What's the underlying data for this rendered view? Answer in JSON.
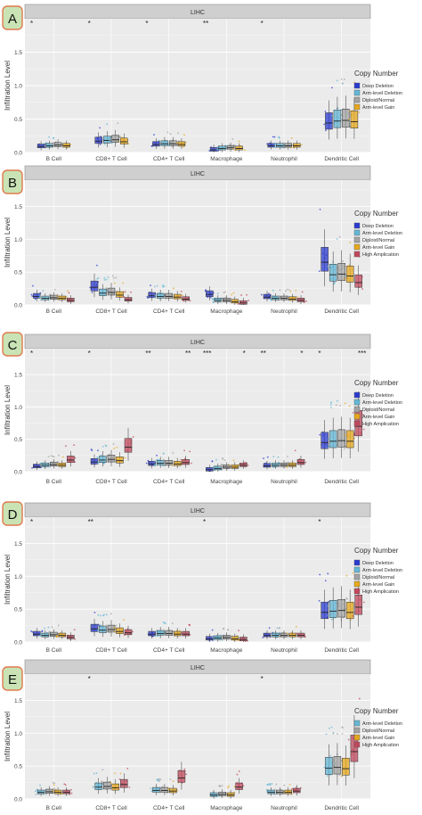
{
  "colors": {
    "Deep Deletion": "#2b3bd0",
    "Arm-level Deletion": "#63b7d6",
    "Diploid/Normal": "#a3a3a3",
    "Arm-level Gain": "#e7a81b",
    "High Amplication": "#c0485c",
    "panel_bg": "#ebebeb",
    "strip_bg": "#cfcfcf",
    "badge_fill": "#c9e3b5",
    "badge_stroke": "#e07a4f"
  },
  "chart_data": [
    {
      "type": "box",
      "panel_label": "A",
      "title": "LIHC",
      "ylabel": "Infiltration Level",
      "ylim": [
        0,
        2.0
      ],
      "yticks": [
        "0.0",
        "0.5",
        "1.0",
        "1.5"
      ],
      "categories": [
        "B Cell",
        "CD8+ T Cell",
        "CD4+ T Cell",
        "Macrophage",
        "Neutrophil",
        "Dendritic Cell"
      ],
      "legend_title": "Copy Number",
      "series": [
        {
          "name": "Deep Deletion",
          "medians": [
            0.09,
            0.17,
            0.12,
            0.04,
            0.1,
            0.44
          ]
        },
        {
          "name": "Arm-level Deletion",
          "medians": [
            0.1,
            0.18,
            0.13,
            0.06,
            0.1,
            0.47
          ]
        },
        {
          "name": "Diploid/Normal",
          "medians": [
            0.11,
            0.19,
            0.13,
            0.07,
            0.1,
            0.48
          ]
        },
        {
          "name": "Arm-level Gain",
          "medians": [
            0.1,
            0.16,
            0.12,
            0.06,
            0.1,
            0.46
          ]
        }
      ],
      "significance": [
        {
          "category": "B Cell",
          "label": "*"
        },
        {
          "category": "CD8+ T Cell",
          "label": "*"
        },
        {
          "category": "CD4+ T Cell",
          "label": "*"
        },
        {
          "category": "Macrophage",
          "label": "**"
        },
        {
          "category": "Neutrophil",
          "label": "*"
        }
      ]
    },
    {
      "type": "box",
      "panel_label": "B",
      "title": "LIHC",
      "ylabel": "Infiltration Level",
      "ylim": [
        0,
        1.9
      ],
      "yticks": [
        "0.0",
        "0.5",
        "1.0",
        "1.5"
      ],
      "categories": [
        "B Cell",
        "CD8+ T Cell",
        "CD4+ T Cell",
        "Macrophage",
        "Neutrophil",
        "Dendritic Cell"
      ],
      "legend_title": "Copy Number",
      "series": [
        {
          "name": "Deep Deletion",
          "medians": [
            0.13,
            0.27,
            0.14,
            0.16,
            0.12,
            0.65
          ]
        },
        {
          "name": "Arm-level Deletion",
          "medians": [
            0.1,
            0.18,
            0.13,
            0.07,
            0.1,
            0.46
          ]
        },
        {
          "name": "Diploid/Normal",
          "medians": [
            0.11,
            0.19,
            0.13,
            0.07,
            0.1,
            0.47
          ]
        },
        {
          "name": "Arm-level Gain",
          "medians": [
            0.1,
            0.15,
            0.12,
            0.05,
            0.09,
            0.44
          ]
        },
        {
          "name": "High Amplication",
          "medians": [
            0.07,
            0.08,
            0.09,
            0.03,
            0.07,
            0.34
          ]
        }
      ],
      "significance": []
    },
    {
      "type": "box",
      "panel_label": "C",
      "title": "LIHC",
      "ylabel": "Infiltration Level",
      "ylim": [
        0,
        1.9
      ],
      "yticks": [
        "0.0",
        "0.5",
        "1.0",
        "1.5"
      ],
      "categories": [
        "B Cell",
        "CD8+ T Cell",
        "CD4+ T Cell",
        "Macrophage",
        "Neutrophil",
        "Dendritic Cell"
      ],
      "legend_title": "Copy Number",
      "series": [
        {
          "name": "Deep Deletion",
          "medians": [
            0.08,
            0.15,
            0.12,
            0.03,
            0.09,
            0.45
          ]
        },
        {
          "name": "Arm-level Deletion",
          "medians": [
            0.1,
            0.18,
            0.13,
            0.05,
            0.1,
            0.47
          ]
        },
        {
          "name": "Diploid/Normal",
          "medians": [
            0.11,
            0.19,
            0.13,
            0.07,
            0.1,
            0.48
          ]
        },
        {
          "name": "Arm-level Gain",
          "medians": [
            0.1,
            0.17,
            0.12,
            0.07,
            0.1,
            0.47
          ]
        },
        {
          "name": "High Amplication",
          "medians": [
            0.18,
            0.38,
            0.14,
            0.1,
            0.14,
            0.7
          ]
        }
      ],
      "significance": [
        {
          "category": "B Cell",
          "label": "*"
        },
        {
          "category": "CD8+ T Cell",
          "label": "*"
        },
        {
          "category": "CD4+ T Cell",
          "label": "**"
        },
        {
          "category": "CD4+ T Cell",
          "label": "**"
        },
        {
          "category": "Macrophage",
          "label": "***"
        },
        {
          "category": "Macrophage",
          "label": "*"
        },
        {
          "category": "Neutrophil",
          "label": "**"
        },
        {
          "category": "Neutrophil",
          "label": "*"
        },
        {
          "category": "Dendritic Cell",
          "label": "*"
        },
        {
          "category": "Dendritic Cell",
          "label": "***"
        }
      ]
    },
    {
      "type": "box",
      "panel_label": "D",
      "title": "LIHC",
      "ylabel": "Infiltration Level",
      "ylim": [
        0,
        1.9
      ],
      "yticks": [
        "0.0",
        "0.5",
        "1.0",
        "1.5"
      ],
      "categories": [
        "B Cell",
        "CD8+ T Cell",
        "CD4+ T Cell",
        "Macrophage",
        "Neutrophil",
        "Dendritic Cell"
      ],
      "legend_title": "Copy Number",
      "series": [
        {
          "name": "Deep Deletion",
          "medians": [
            0.12,
            0.2,
            0.12,
            0.05,
            0.1,
            0.45
          ]
        },
        {
          "name": "Arm-level Deletion",
          "medians": [
            0.1,
            0.18,
            0.13,
            0.06,
            0.1,
            0.47
          ]
        },
        {
          "name": "Diploid/Normal",
          "medians": [
            0.11,
            0.19,
            0.13,
            0.07,
            0.1,
            0.48
          ]
        },
        {
          "name": "Arm-level Gain",
          "medians": [
            0.1,
            0.16,
            0.12,
            0.05,
            0.1,
            0.45
          ]
        },
        {
          "name": "High Amplication",
          "medians": [
            0.07,
            0.14,
            0.12,
            0.04,
            0.1,
            0.53
          ]
        }
      ],
      "significance": [
        {
          "category": "B Cell",
          "label": "*"
        },
        {
          "category": "CD8+ T Cell",
          "label": "**"
        },
        {
          "category": "Macrophage",
          "label": "*"
        },
        {
          "category": "Dendritic Cell",
          "label": "*"
        }
      ]
    },
    {
      "type": "box",
      "panel_label": "E",
      "title": "LIHC",
      "ylabel": "Infiltration Level",
      "ylim": [
        0,
        1.9
      ],
      "yticks": [
        "0.0",
        "0.5",
        "1.0",
        "1.5"
      ],
      "categories": [
        "B Cell",
        "CD8+ T Cell",
        "CD4+ T Cell",
        "Macrophage",
        "Neutrophil",
        "Dendritic Cell"
      ],
      "legend_title": "Copy Number",
      "series": [
        {
          "name": "Arm-level Deletion",
          "medians": [
            0.1,
            0.18,
            0.13,
            0.06,
            0.1,
            0.47
          ]
        },
        {
          "name": "Diploid/Normal",
          "medians": [
            0.11,
            0.19,
            0.13,
            0.07,
            0.1,
            0.48
          ]
        },
        {
          "name": "Arm-level Gain",
          "medians": [
            0.1,
            0.17,
            0.12,
            0.06,
            0.1,
            0.46
          ]
        },
        {
          "name": "High Amplication",
          "medians": [
            0.1,
            0.22,
            0.32,
            0.18,
            0.12,
            0.72
          ]
        }
      ],
      "significance": [
        {
          "category": "CD8+ T Cell",
          "label": "*"
        },
        {
          "category": "Neutrophil",
          "label": "*"
        }
      ]
    }
  ]
}
